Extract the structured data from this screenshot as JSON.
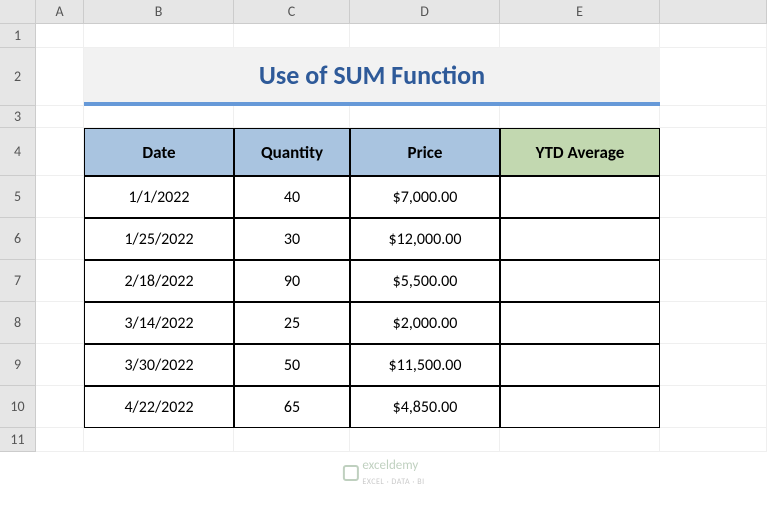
{
  "columns": [
    "A",
    "B",
    "C",
    "D",
    "E"
  ],
  "rows": [
    "1",
    "2",
    "3",
    "4",
    "5",
    "6",
    "7",
    "8",
    "9",
    "10",
    "11"
  ],
  "title": "Use of SUM Function",
  "headers": {
    "date": "Date",
    "quantity": "Quantity",
    "price": "Price",
    "ytd": "YTD Average"
  },
  "data": [
    {
      "date": "1/1/2022",
      "quantity": "40",
      "price": "$7,000.00",
      "ytd": ""
    },
    {
      "date": "1/25/2022",
      "quantity": "30",
      "price": "$12,000.00",
      "ytd": ""
    },
    {
      "date": "2/18/2022",
      "quantity": "90",
      "price": "$5,500.00",
      "ytd": ""
    },
    {
      "date": "3/14/2022",
      "quantity": "25",
      "price": "$2,000.00",
      "ytd": ""
    },
    {
      "date": "3/30/2022",
      "quantity": "50",
      "price": "$11,500.00",
      "ytd": ""
    },
    {
      "date": "4/22/2022",
      "quantity": "65",
      "price": "$4,850.00",
      "ytd": ""
    }
  ],
  "watermark": {
    "name": "exceldemy",
    "sub": "EXCEL · DATA · BI"
  },
  "colors": {
    "title_bg": "#f2f2f2",
    "title_fg": "#2e5a99",
    "title_underline": "#6699d8",
    "header_blue": "#a9c4e0",
    "header_green": "#c2d8b0",
    "grid_border": "#efefef",
    "header_border": "#cccccc",
    "header_bg": "#e6e6e6",
    "table_border": "#000000"
  }
}
